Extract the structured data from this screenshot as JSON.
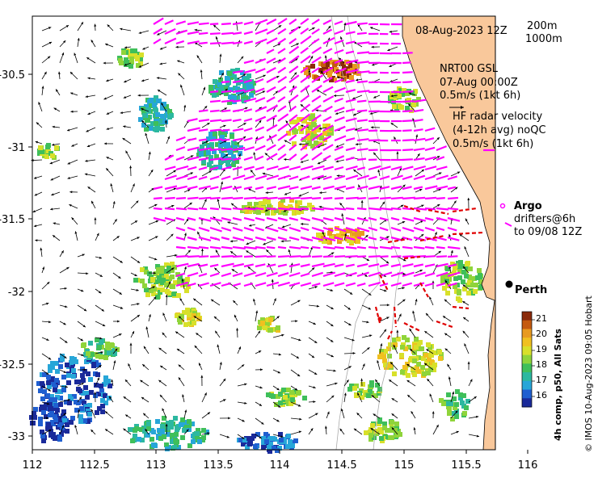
{
  "map": {
    "x_axis": {
      "ticks": [
        "112",
        "112.5",
        "113",
        "113.5",
        "114",
        "114.5",
        "115",
        "115.5",
        "116"
      ]
    },
    "y_axis": {
      "ticks": [
        "-30.5",
        "-31",
        "-31.5",
        "-32",
        "-32.5",
        "-33"
      ]
    }
  },
  "header": {
    "date": "08-Aug-2023 12Z"
  },
  "depth_contours": {
    "line1": "200m",
    "line2": "1000m"
  },
  "legend": {
    "nrt_line1": "NRT00 GSL",
    "nrt_line2": "07-Aug 00:00Z",
    "nrt_line3": "0.5m/s (1kt 6h)",
    "hf_line1": "HF radar velocity",
    "hf_line2": "(4-12h avg) noQC",
    "hf_line3": "0.5m/s (1kt 6h)",
    "argo_label": "Argo",
    "drifters_line1": "drifters@6h",
    "drifters_line2": "to 09/08 12Z"
  },
  "place": {
    "name": "Perth"
  },
  "colorbar": {
    "title": "4h comp, p50, All Sats",
    "ticks": [
      "21",
      "20",
      "19",
      "18",
      "17",
      "16"
    ]
  },
  "credit": "© IMOS 10-Aug-2023 09:05 Hobart",
  "colors": {
    "land": "#f9c89b",
    "hf_radar": "#ff00ff",
    "drifters": "#e00000",
    "argo": "#ff00ff"
  }
}
